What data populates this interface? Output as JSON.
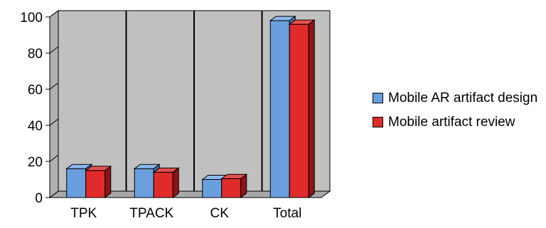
{
  "colors": {
    "series1": "#6a9fdd",
    "series1_top": "#8db8ec",
    "series1_side": "#3f6fae",
    "series2": "#e02b2b",
    "series2_top": "#e85050",
    "series2_side": "#8c1515",
    "wall": "#c0c0c0",
    "floor": "#a8a8a8"
  },
  "chart_data": {
    "type": "bar",
    "categories": [
      "TPK",
      "TPACK",
      "CK",
      "Total"
    ],
    "series": [
      {
        "name": "Mobile AR artifact design",
        "values": [
          16,
          16,
          10,
          98
        ]
      },
      {
        "name": "Mobile artifact review",
        "values": [
          15,
          14,
          10.5,
          96
        ]
      }
    ],
    "ylim": [
      0,
      100
    ],
    "yticks": [
      "0",
      "20",
      "40",
      "60",
      "80",
      "100"
    ],
    "legend_position": "right",
    "grid": false
  }
}
